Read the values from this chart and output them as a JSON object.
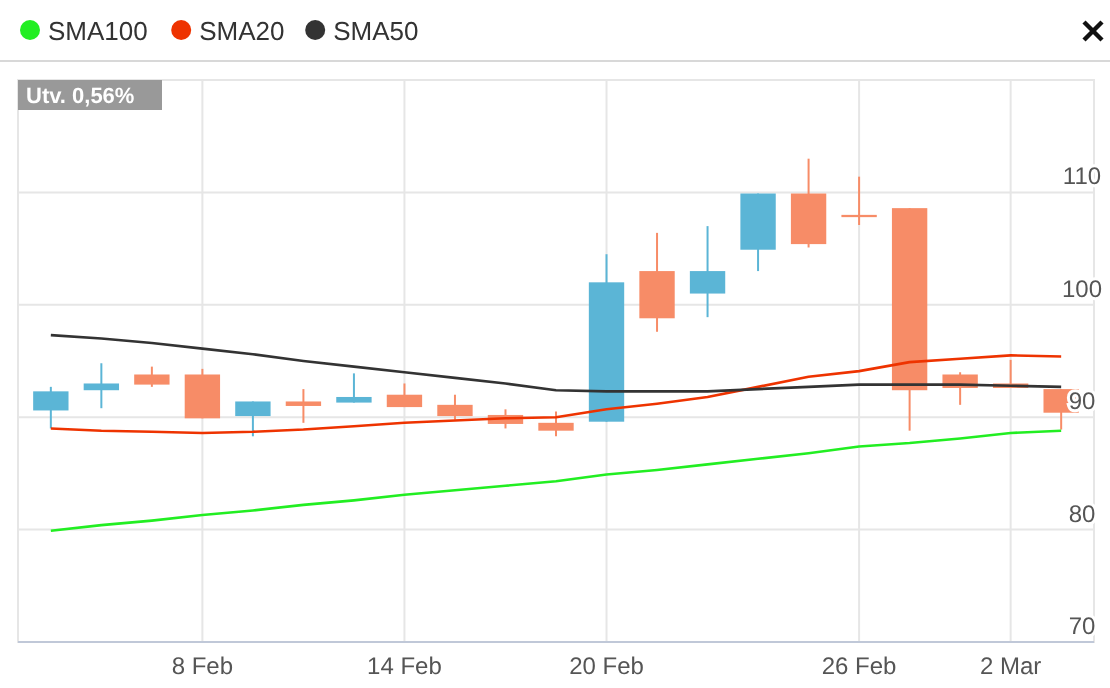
{
  "chart_data": {
    "type": "candlestick",
    "categories": [
      null,
      null,
      null,
      "8 Feb",
      null,
      null,
      null,
      "14 Feb",
      null,
      null,
      null,
      "20 Feb",
      null,
      null,
      null,
      null,
      "26 Feb",
      null,
      null,
      "2 Mar",
      null
    ],
    "ohlc": [
      [
        90.6,
        92.7,
        89.0,
        92.3
      ],
      [
        92.4,
        94.8,
        90.8,
        93.0
      ],
      [
        93.8,
        94.5,
        92.7,
        92.9
      ],
      [
        93.8,
        94.3,
        89.9,
        89.9
      ],
      [
        90.1,
        91.4,
        88.3,
        91.4
      ],
      [
        91.4,
        92.5,
        89.5,
        91.0
      ],
      [
        91.3,
        93.9,
        91.3,
        91.8
      ],
      [
        92.0,
        93.0,
        90.9,
        90.9
      ],
      [
        91.1,
        92.0,
        89.8,
        90.1
      ],
      [
        90.2,
        90.7,
        89.0,
        89.4
      ],
      [
        89.5,
        90.5,
        88.3,
        88.8
      ],
      [
        89.6,
        104.5,
        89.6,
        102.0
      ],
      [
        103.0,
        106.4,
        97.6,
        98.8
      ],
      [
        101.0,
        107.0,
        98.9,
        103.0
      ],
      [
        104.9,
        109.9,
        103.0,
        109.9
      ],
      [
        109.9,
        113.0,
        105.1,
        105.4
      ],
      [
        108.0,
        111.4,
        107.1,
        107.8
      ],
      [
        108.6,
        108.6,
        88.8,
        92.4
      ],
      [
        93.8,
        94.0,
        91.1,
        92.6
      ],
      [
        93.0,
        95.1,
        92.6,
        92.6
      ],
      [
        92.5,
        92.5,
        88.9,
        90.4
      ]
    ],
    "colors": [
      "#5bb5d6",
      "#5bb5d6",
      "#f78c67",
      "#f78c67",
      "#5bb5d6",
      "#f78c67",
      "#5bb5d6",
      "#f78c67",
      "#f78c67",
      "#f78c67",
      "#f78c67",
      "#5bb5d6",
      "#f78c67",
      "#5bb5d6",
      "#5bb5d6",
      "#f78c67",
      "#f78c67",
      "#f78c67",
      "#f78c67",
      "#f78c67",
      "#f78c67"
    ],
    "series": [
      {
        "type": "line",
        "name": "SMA100",
        "color": "#22ee22",
        "values": [
          79.9,
          80.4,
          80.8,
          81.3,
          81.7,
          82.2,
          82.6,
          83.1,
          83.5,
          83.9,
          84.3,
          84.9,
          85.3,
          85.8,
          86.3,
          86.8,
          87.4,
          87.7,
          88.1,
          88.6,
          88.8
        ]
      },
      {
        "type": "line",
        "name": "SMA20",
        "color": "#ee3300",
        "values": [
          89.0,
          88.8,
          88.7,
          88.6,
          88.7,
          88.9,
          89.2,
          89.5,
          89.7,
          89.9,
          90.0,
          90.7,
          91.2,
          91.8,
          92.7,
          93.6,
          94.1,
          94.9,
          95.2,
          95.5,
          95.4
        ]
      },
      {
        "type": "line",
        "name": "SMA50",
        "color": "#333333",
        "values": [
          97.3,
          97.0,
          96.6,
          96.1,
          95.6,
          95.0,
          94.5,
          94.0,
          93.5,
          93.0,
          92.4,
          92.3,
          92.3,
          92.3,
          92.5,
          92.7,
          92.9,
          92.9,
          92.9,
          92.8,
          92.7
        ]
      }
    ],
    "ylim": [
      70,
      120
    ],
    "yticks": [
      70,
      80,
      90,
      100,
      110
    ],
    "grid": true,
    "legend": "top left",
    "annotations": [
      "Utv. 0,56%"
    ]
  }
}
